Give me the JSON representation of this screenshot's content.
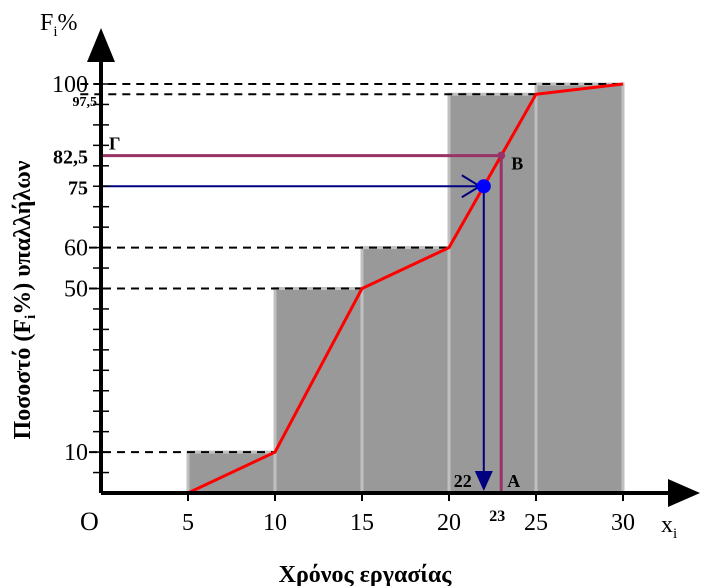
{
  "chart_data": {
    "type": "bar",
    "subtype": "cumulative-frequency histogram with ogive",
    "xlabel": "Χρόνος εργασίας",
    "ylabel": "Ποσοστό (Fᵢ%) υπαλλήλων",
    "x_axis_symbol": "xi",
    "y_axis_symbol": "Fi%",
    "origin_label": "O",
    "x_ticks": [
      "5",
      "10",
      "15",
      "20",
      "25",
      "30"
    ],
    "xlim": [
      0,
      30
    ],
    "ylim": [
      0,
      100
    ],
    "bins": [
      {
        "from": 5,
        "to": 10,
        "cum_percent": 10
      },
      {
        "from": 10,
        "to": 15,
        "cum_percent": 50
      },
      {
        "from": 15,
        "to": 20,
        "cum_percent": 60
      },
      {
        "from": 20,
        "to": 25,
        "cum_percent": 97.5
      },
      {
        "from": 25,
        "to": 30,
        "cum_percent": 100
      }
    ],
    "ogive": {
      "x": [
        5,
        10,
        15,
        20,
        25,
        30
      ],
      "y": [
        0,
        10,
        50,
        60,
        97.5,
        100
      ],
      "color": "#ff0000"
    },
    "y_labels": [
      {
        "value": 10,
        "text": "10",
        "bold": false
      },
      {
        "value": 50,
        "text": "50",
        "bold": false
      },
      {
        "value": 60,
        "text": "60",
        "bold": false
      },
      {
        "value": 75,
        "text": "75",
        "bold": true
      },
      {
        "value": 82.5,
        "text": "82,5",
        "bold": true
      },
      {
        "value": 97.5,
        "text": "97,5",
        "bold": true,
        "small": true
      },
      {
        "value": 100,
        "text": "100",
        "bold": false
      }
    ],
    "dashed_guides": [
      10,
      50,
      60,
      97.5,
      100
    ],
    "annotations": {
      "median_like": {
        "x": 22,
        "y": 75,
        "x_label": "22",
        "y_label": "75",
        "color": "#000080",
        "point_color": "#0000ff"
      },
      "point_B": {
        "x": 23,
        "y": 82.5,
        "x_label": "23",
        "y_label": "82,5",
        "label": "B",
        "foot_label": "A",
        "y_axis_label": "Γ",
        "color": "#993366"
      }
    },
    "bar_fill": "#999999",
    "bar_stroke": "#c0c0c0"
  }
}
